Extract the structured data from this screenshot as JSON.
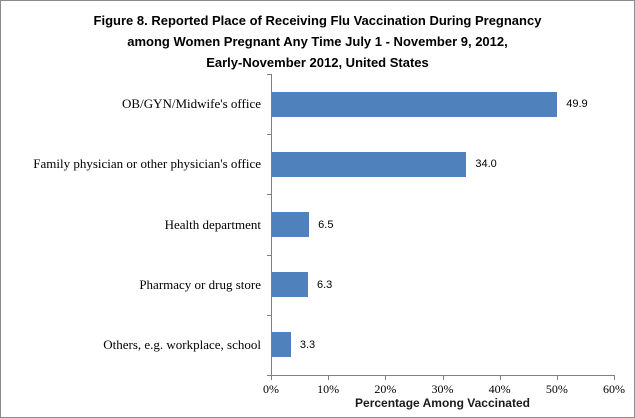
{
  "figure": {
    "background": "#ffffff",
    "border_color": "#8c8c8c"
  },
  "chart_data": {
    "type": "bar",
    "orientation": "horizontal",
    "title": "Figure 8. Reported Place of Receiving Flu Vaccination During Pregnancy among Women Pregnant Any Time July 1 - November 9, 2012, Early-November 2012, United States",
    "title_lines": [
      "Figure 8. Reported Place of Receiving Flu Vaccination During Pregnancy",
      "among Women Pregnant Any Time July 1 - November 9, 2012,",
      "Early-November 2012, United States"
    ],
    "categories": [
      "OB/GYN/Midwife's office",
      "Family physician or other physician's office",
      "Health department",
      "Pharmacy or drug store",
      "Others, e.g. workplace, school"
    ],
    "values": [
      49.9,
      34.0,
      6.5,
      6.3,
      3.3
    ],
    "value_labels": [
      "49.9",
      "34.0",
      "6.5",
      "6.3",
      "3.3"
    ],
    "xlabel": "Percentage Among Vaccinated",
    "ylabel": "",
    "xlim": [
      0,
      60
    ],
    "x_tick_values": [
      0,
      10,
      20,
      30,
      40,
      50,
      60
    ],
    "x_tick_labels": [
      "0%",
      "10%",
      "20%",
      "30%",
      "40%",
      "50%",
      "60%"
    ],
    "bar_color": "#4f81bd",
    "axis_color": "#808080",
    "grid": false,
    "legend": false
  }
}
